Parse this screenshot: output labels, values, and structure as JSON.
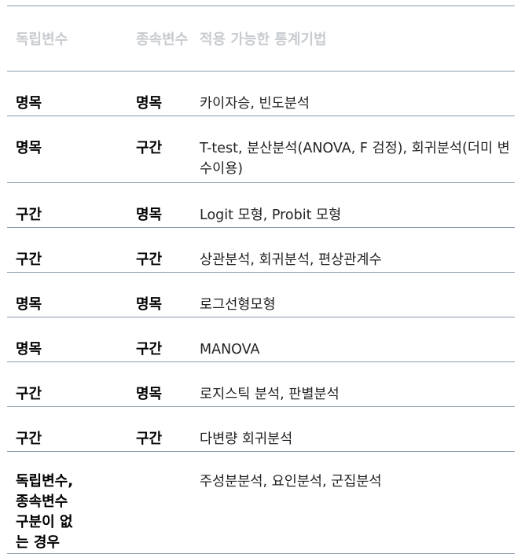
{
  "table": {
    "headers": {
      "independent": "독립변수",
      "dependent": "종속변수",
      "method": "적용 가능한 통계기법"
    },
    "rows": [
      {
        "iv": "명목",
        "dv": "명목",
        "method": "카이자승, 빈도분석"
      },
      {
        "iv": "명목",
        "dv": "구간",
        "method": "T-test, 분산분석(ANOVA, F 검정), 회귀분석(더미 변수이용)"
      },
      {
        "iv": "구간",
        "dv": "명목",
        "method": "Logit 모형, Probit 모형"
      },
      {
        "iv": "구간",
        "dv": "구간",
        "method": "상관분석, 회귀분석, 편상관계수"
      },
      {
        "iv": "명목",
        "dv": "명목",
        "method": "로그선형모형"
      },
      {
        "iv": "명목",
        "dv": "구간",
        "method": "MANOVA"
      },
      {
        "iv": "구간",
        "dv": "명목",
        "method": "로지스틱 분석, 판별분석"
      },
      {
        "iv": "구간",
        "dv": "구간",
        "method": "다변량 회귀분석"
      },
      {
        "iv": "독립변수, 종속변수 구분이 없는 경우",
        "dv": "",
        "method": "주성분분석, 요인분석, 군집분석"
      }
    ]
  }
}
